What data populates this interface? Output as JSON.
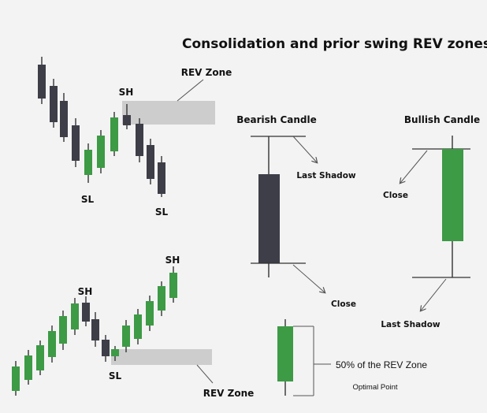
{
  "title": "Consolidation and prior swing REV zones",
  "colors": {
    "bearish": "#3d3e48",
    "bullish": "#3d9a45",
    "wick": "#333333",
    "zone": "#cdcdcd",
    "background": "#f3f3f3"
  },
  "top_chart": {
    "rev_zone_label": "REV Zone",
    "sh_label": "SH",
    "sl_left_label": "SL",
    "sl_right_label": "SL"
  },
  "bottom_chart": {
    "rev_zone_label": "REV Zone",
    "sh_left_label": "SH",
    "sh_right_label": "SH",
    "sl_label": "SL"
  },
  "bearish_candle": {
    "title": "Bearish Candle",
    "last_shadow_label": "Last Shadow",
    "close_label": "Close"
  },
  "bullish_candle": {
    "title": "Bullish Candle",
    "close_label": "Close",
    "last_shadow_label": "Last Shadow"
  },
  "optimal": {
    "percent_label": "50% of the REV Zone",
    "optimal_label": "Optimal Point"
  }
}
